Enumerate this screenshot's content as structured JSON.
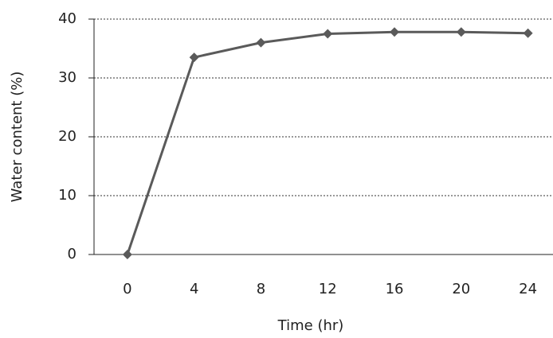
{
  "chart_data": {
    "type": "line",
    "x_label": "Time (hr)",
    "y_label": "Water content (%)",
    "x": [
      0,
      4,
      8,
      12,
      16,
      20,
      24
    ],
    "series": [
      {
        "name": "Water content",
        "color": "#5a5a5a",
        "values": [
          0,
          33.5,
          36,
          37.5,
          37.8,
          37.8,
          37.6
        ]
      }
    ],
    "xlim": [
      -2,
      25.5
    ],
    "xticks": [
      0,
      4,
      8,
      12,
      16,
      20,
      24
    ],
    "ylim": [
      0,
      40
    ],
    "yticks": [
      0,
      10,
      20,
      30,
      40
    ],
    "grid": true
  }
}
